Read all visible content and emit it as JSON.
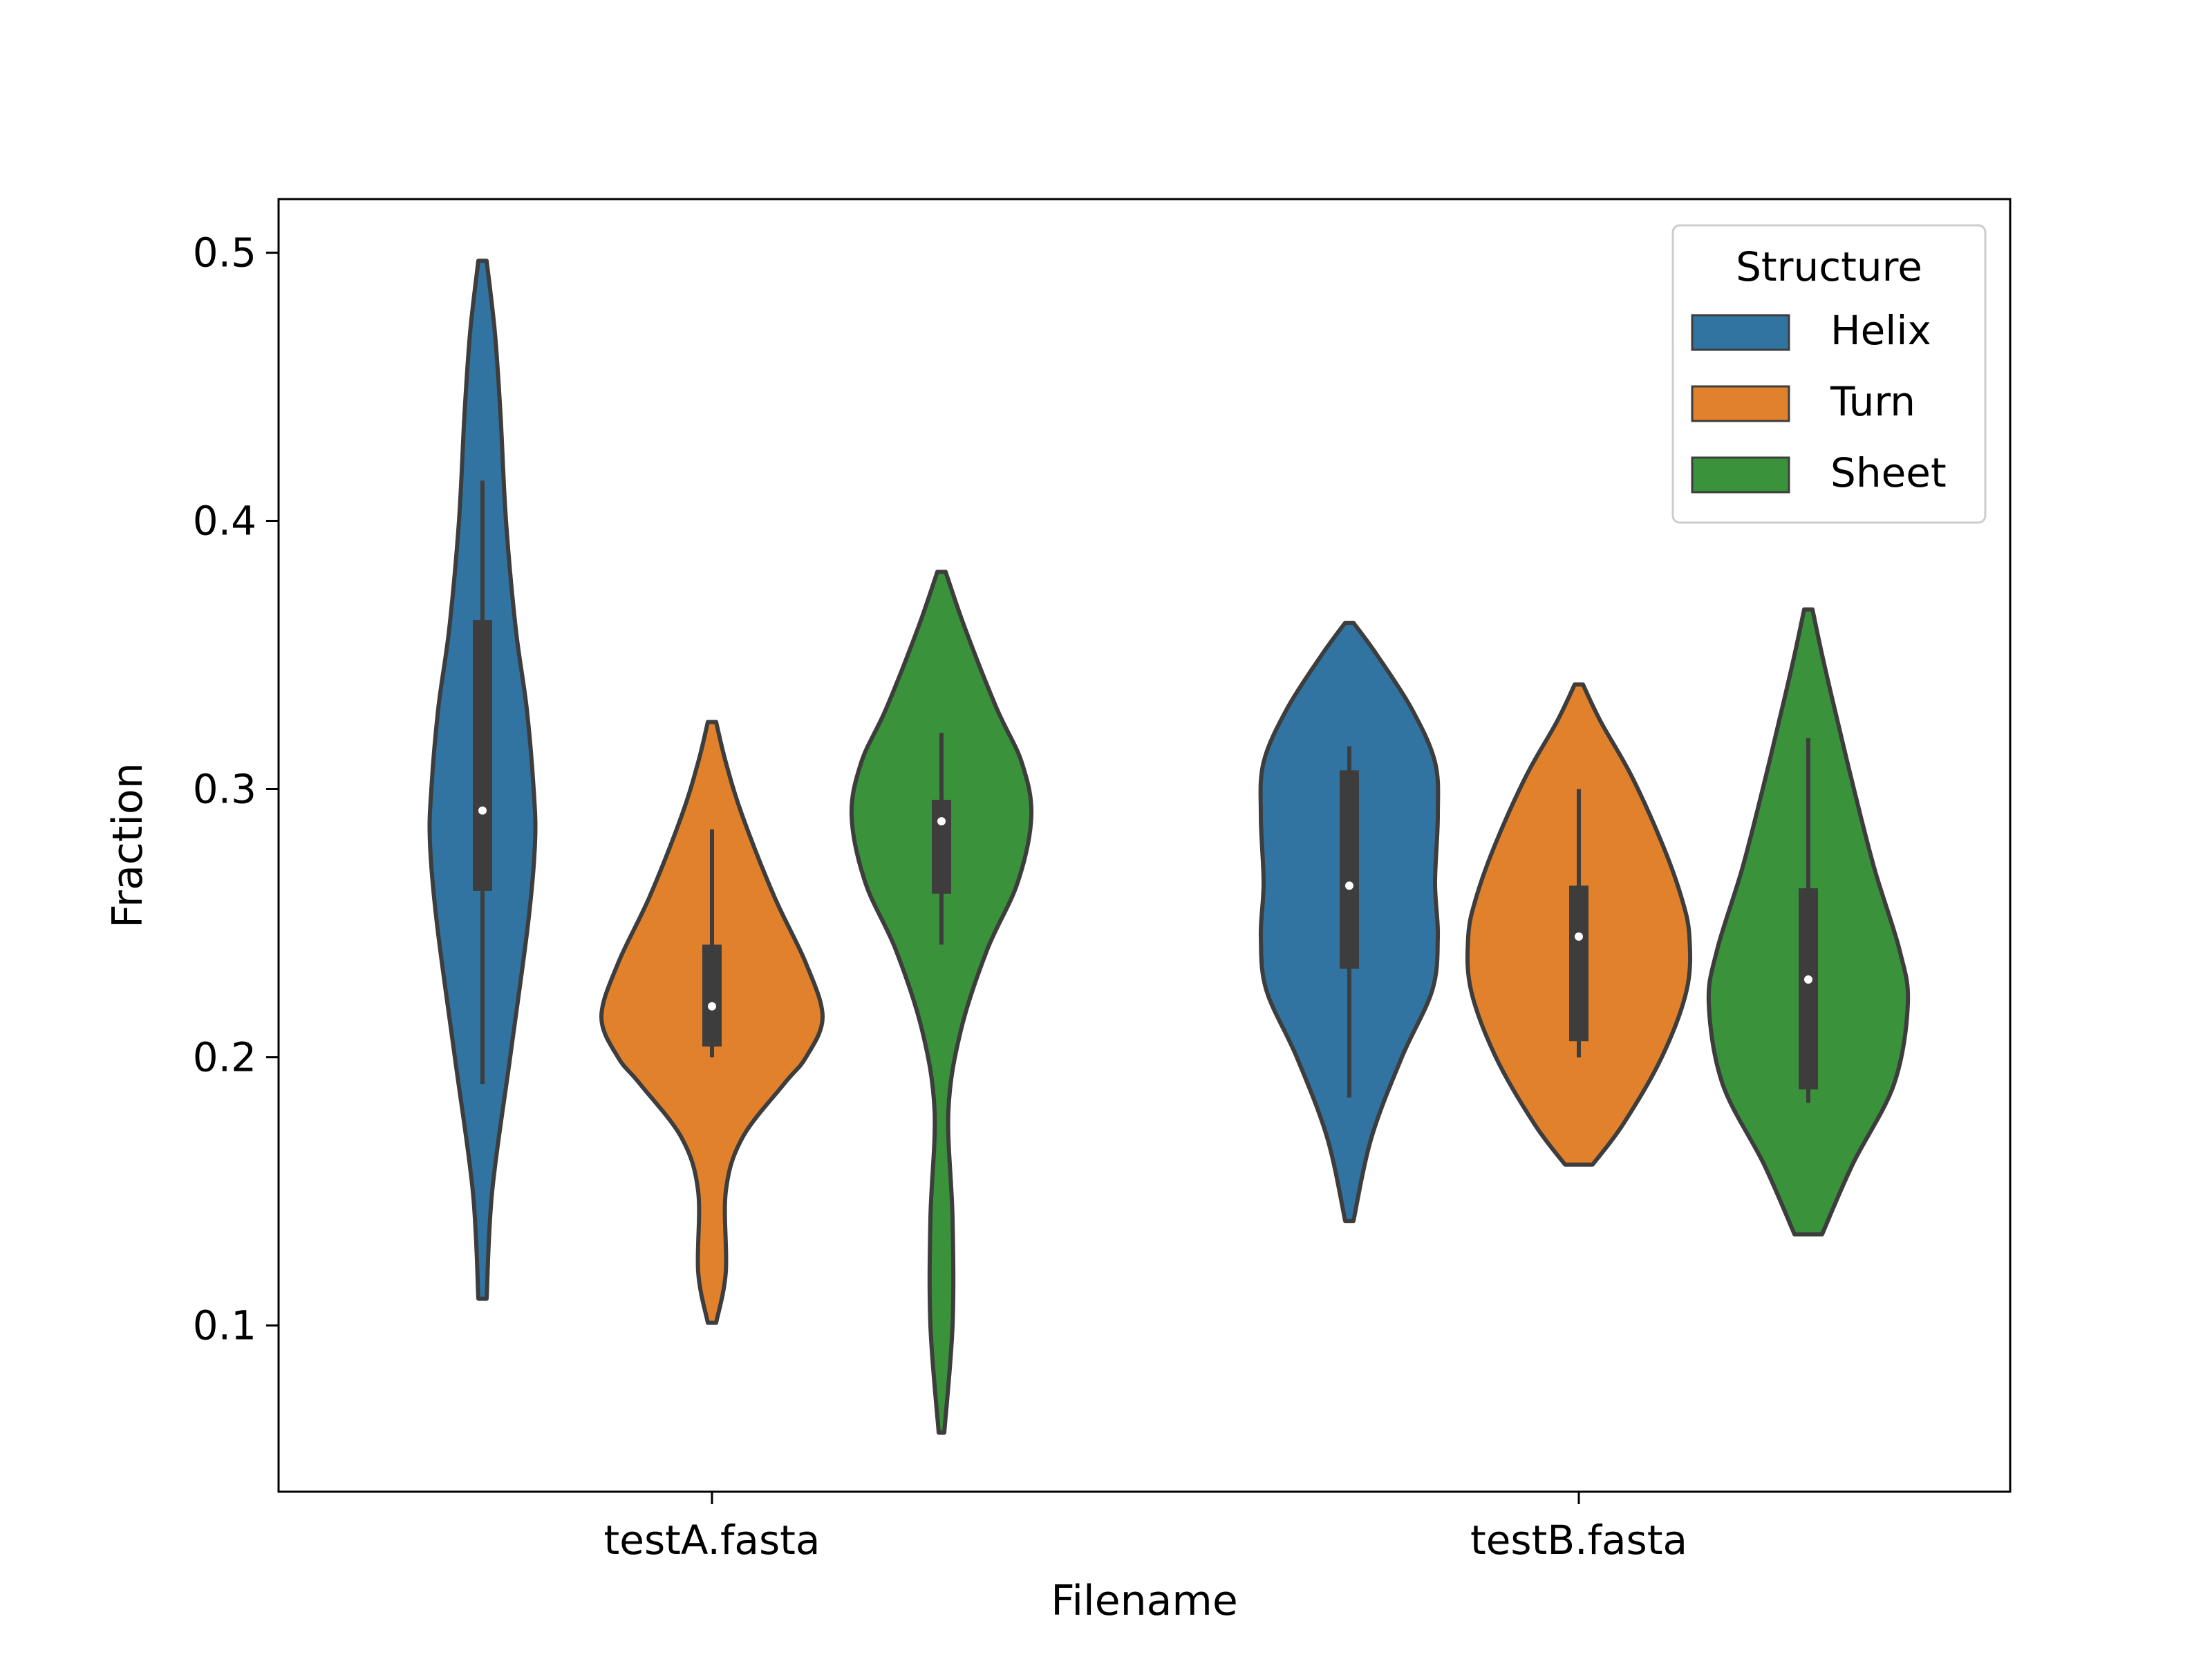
{
  "chart_data": {
    "type": "violin",
    "title": "",
    "xlabel": "Filename",
    "ylabel": "Fraction",
    "categories": [
      "testA.fasta",
      "testB.fasta"
    ],
    "ylim": [
      0.038,
      0.52
    ],
    "yticks": [
      0.1,
      0.2,
      0.3,
      0.4,
      0.5
    ],
    "ytick_labels": [
      "0.1",
      "0.2",
      "0.3",
      "0.4",
      "0.5"
    ],
    "grid": false,
    "legend": {
      "title": "Structure",
      "position": "top-right"
    },
    "series": [
      {
        "name": "Helix",
        "color": "#3274a1",
        "values": [
          {
            "category": "testA.fasta",
            "min": 0.11,
            "max": 0.497,
            "whisker_low": 0.19,
            "q1": 0.262,
            "median": 0.292,
            "q3": 0.363,
            "whisker_high": 0.415,
            "density": [
              [
                0.11,
                0.003
              ],
              [
                0.15,
                0.007
              ],
              [
                0.2,
                0.02
              ],
              [
                0.25,
                0.033
              ],
              [
                0.28,
                0.038
              ],
              [
                0.3,
                0.037
              ],
              [
                0.33,
                0.032
              ],
              [
                0.36,
                0.024
              ],
              [
                0.4,
                0.017
              ],
              [
                0.44,
                0.013
              ],
              [
                0.47,
                0.009
              ],
              [
                0.497,
                0.003
              ]
            ]
          },
          {
            "category": "testB.fasta",
            "min": 0.139,
            "max": 0.362,
            "whisker_low": 0.185,
            "q1": 0.233,
            "median": 0.264,
            "q3": 0.307,
            "whisker_high": 0.316,
            "density": [
              [
                0.139,
                0.003
              ],
              [
                0.17,
                0.016
              ],
              [
                0.2,
                0.038
              ],
              [
                0.225,
                0.06
              ],
              [
                0.245,
                0.064
              ],
              [
                0.265,
                0.062
              ],
              [
                0.29,
                0.064
              ],
              [
                0.31,
                0.062
              ],
              [
                0.33,
                0.045
              ],
              [
                0.35,
                0.02
              ],
              [
                0.362,
                0.003
              ]
            ]
          }
        ]
      },
      {
        "name": "Turn",
        "color": "#e1812c",
        "values": [
          {
            "category": "testA.fasta",
            "min": 0.101,
            "max": 0.325,
            "whisker_low": 0.2,
            "q1": 0.204,
            "median": 0.219,
            "q3": 0.242,
            "whisker_high": 0.285,
            "density": [
              [
                0.101,
                0.003
              ],
              [
                0.12,
                0.01
              ],
              [
                0.15,
                0.01
              ],
              [
                0.17,
                0.022
              ],
              [
                0.19,
                0.052
              ],
              [
                0.2,
                0.068
              ],
              [
                0.215,
                0.08
              ],
              [
                0.235,
                0.068
              ],
              [
                0.26,
                0.045
              ],
              [
                0.29,
                0.022
              ],
              [
                0.31,
                0.01
              ],
              [
                0.325,
                0.003
              ]
            ]
          },
          {
            "category": "testB.fasta",
            "min": 0.16,
            "max": 0.339,
            "whisker_low": 0.2,
            "q1": 0.206,
            "median": 0.245,
            "q3": 0.264,
            "whisker_high": 0.3,
            "density": [
              [
                0.16,
                0.01
              ],
              [
                0.175,
                0.032
              ],
              [
                0.2,
                0.06
              ],
              [
                0.225,
                0.078
              ],
              [
                0.245,
                0.08
              ],
              [
                0.26,
                0.074
              ],
              [
                0.28,
                0.06
              ],
              [
                0.305,
                0.038
              ],
              [
                0.325,
                0.016
              ],
              [
                0.339,
                0.003
              ]
            ]
          }
        ]
      },
      {
        "name": "Sheet",
        "color": "#3a923a",
        "values": [
          {
            "category": "testA.fasta",
            "min": 0.06,
            "max": 0.381,
            "whisker_low": 0.242,
            "q1": 0.261,
            "median": 0.288,
            "q3": 0.296,
            "whisker_high": 0.321,
            "density": [
              [
                0.06,
                0.002
              ],
              [
                0.1,
                0.008
              ],
              [
                0.14,
                0.008
              ],
              [
                0.18,
                0.005
              ],
              [
                0.21,
                0.014
              ],
              [
                0.24,
                0.033
              ],
              [
                0.265,
                0.055
              ],
              [
                0.29,
                0.065
              ],
              [
                0.31,
                0.058
              ],
              [
                0.33,
                0.04
              ],
              [
                0.36,
                0.017
              ],
              [
                0.381,
                0.003
              ]
            ]
          },
          {
            "category": "testB.fasta",
            "min": 0.134,
            "max": 0.367,
            "whisker_low": 0.183,
            "q1": 0.188,
            "median": 0.229,
            "q3": 0.263,
            "whisker_high": 0.319,
            "density": [
              [
                0.134,
                0.01
              ],
              [
                0.16,
                0.032
              ],
              [
                0.19,
                0.062
              ],
              [
                0.22,
                0.072
              ],
              [
                0.24,
                0.066
              ],
              [
                0.27,
                0.048
              ],
              [
                0.3,
                0.033
              ],
              [
                0.33,
                0.019
              ],
              [
                0.35,
                0.01
              ],
              [
                0.367,
                0.003
              ]
            ]
          }
        ]
      }
    ]
  }
}
